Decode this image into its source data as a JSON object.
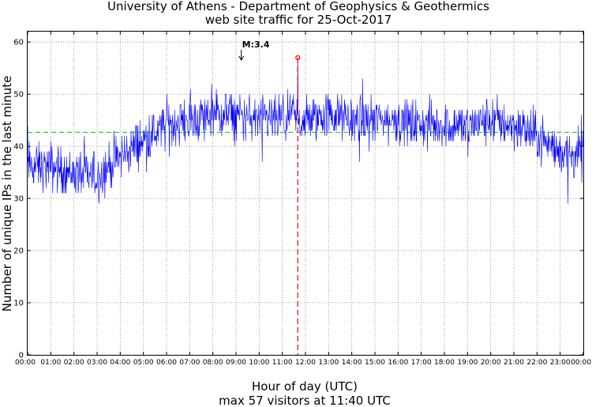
{
  "chart_data": {
    "type": "line",
    "title": "University of Athens - Department of Geophysics & Geothermics",
    "subtitle": "web site traffic for 25-Oct-2017",
    "xlabel": "Hour of day (UTC)",
    "xlabel2": "max 57 visitors at 11:40 UTC",
    "ylabel": "Number of unique IPs in the last minute",
    "xlim_hours": [
      0,
      24
    ],
    "ylim": [
      0,
      62
    ],
    "x_ticks": [
      "00:00",
      "01:00",
      "02:00",
      "03:00",
      "04:00",
      "05:00",
      "06:00",
      "07:00",
      "08:00",
      "09:00",
      "10:00",
      "11:00",
      "12:00",
      "13:00",
      "14:00",
      "15:00",
      "16:00",
      "17:00",
      "18:00",
      "19:00",
      "20:00",
      "21:00",
      "22:00",
      "23:00",
      "00:00"
    ],
    "y_ticks": [
      0,
      10,
      20,
      30,
      40,
      50,
      60
    ],
    "grid": true,
    "mean_line": 42.7,
    "max": {
      "value": 57,
      "hour": 11.667,
      "label": "11:40"
    },
    "annotation": {
      "text": "M:3.4",
      "hour": 9.33
    },
    "colors": {
      "series": "#0000ff",
      "mean": "#00cc00",
      "max": "#ff0000",
      "grid": "#888888"
    },
    "series": [
      {
        "name": "unique IPs per minute",
        "hourly_level": [
          36,
          36,
          35,
          34,
          38,
          41,
          44,
          45,
          46,
          46,
          45,
          45,
          45,
          46,
          45,
          45,
          45,
          44,
          44,
          44,
          45,
          44,
          42,
          39,
          38
        ],
        "noise_amplitude": 4.5
      }
    ]
  }
}
